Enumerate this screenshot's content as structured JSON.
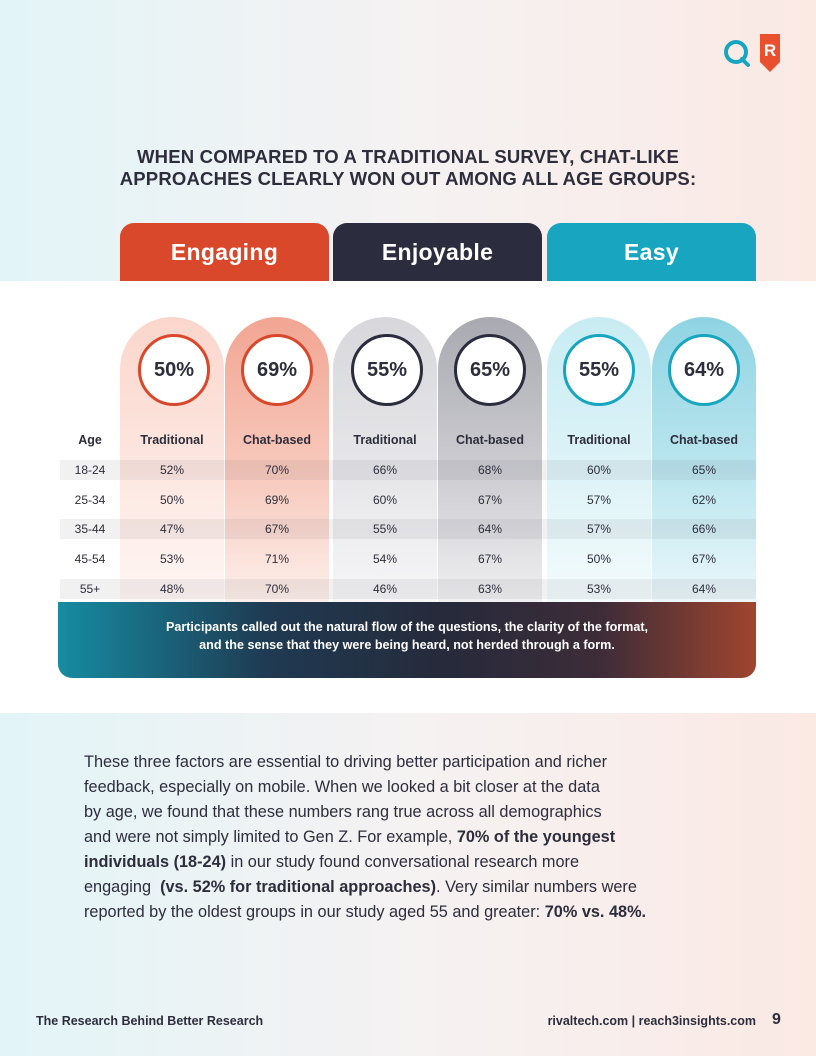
{
  "headline_line1": "WHEN COMPARED TO A TRADITIONAL SURVEY, CHAT-LIKE",
  "headline_line2": "APPROACHES CLEARLY WON OUT AMONG ALL AGE GROUPS:",
  "logo": {
    "letter": "R",
    "teal": "#17a5c0",
    "orange": "#e8502e"
  },
  "categories": [
    {
      "label": "Engaging",
      "color": "#d9482b"
    },
    {
      "label": "Enjoyable",
      "color": "#2b2c3d"
    },
    {
      "label": "Easy",
      "color": "#17a5c0"
    }
  ],
  "totals": [
    "50%",
    "69%",
    "55%",
    "65%",
    "55%",
    "64%"
  ],
  "table": {
    "age_header": "Age",
    "columns": [
      "Traditional",
      "Chat-based",
      "Traditional",
      "Chat-based",
      "Traditional",
      "Chat-based"
    ],
    "rows": [
      {
        "age": "18-24",
        "values": [
          "52%",
          "70%",
          "66%",
          "68%",
          "60%",
          "65%"
        ]
      },
      {
        "age": "25-34",
        "values": [
          "50%",
          "69%",
          "60%",
          "67%",
          "57%",
          "62%"
        ]
      },
      {
        "age": "35-44",
        "values": [
          "47%",
          "67%",
          "55%",
          "64%",
          "57%",
          "66%"
        ]
      },
      {
        "age": "45-54",
        "values": [
          "53%",
          "71%",
          "54%",
          "67%",
          "50%",
          "67%"
        ]
      },
      {
        "age": "55+",
        "values": [
          "48%",
          "70%",
          "46%",
          "63%",
          "53%",
          "64%"
        ]
      }
    ]
  },
  "banner_line1": "Participants called out the natural flow of the questions, the clarity of the format,",
  "banner_line2": "and the sense that they were being heard, not herded through a form.",
  "body": {
    "l1": "These three factors are essential to driving better participation and richer",
    "l2": "feedback, especially on mobile. When we looked a bit closer at the data",
    "l3": "by age, we found that these numbers rang true across all demographics",
    "l4a": "and were not simply limited to Gen Z. For example, ",
    "l4b": "70% of the youngest",
    "l5a": "individuals (18-24)",
    "l5b": " in our study found conversational research more",
    "l6a": "engaging  ",
    "l6b": "(vs. 52% for traditional approaches)",
    "l6c": ". Very similar numbers were",
    "l7a": "reported by the oldest groups in our study aged 55 and greater: ",
    "l7b": "70% vs. 48%."
  },
  "footer": {
    "left": "The Research Behind Better Research",
    "right": "rivaltech.com | reach3insights.com",
    "page": "9"
  }
}
